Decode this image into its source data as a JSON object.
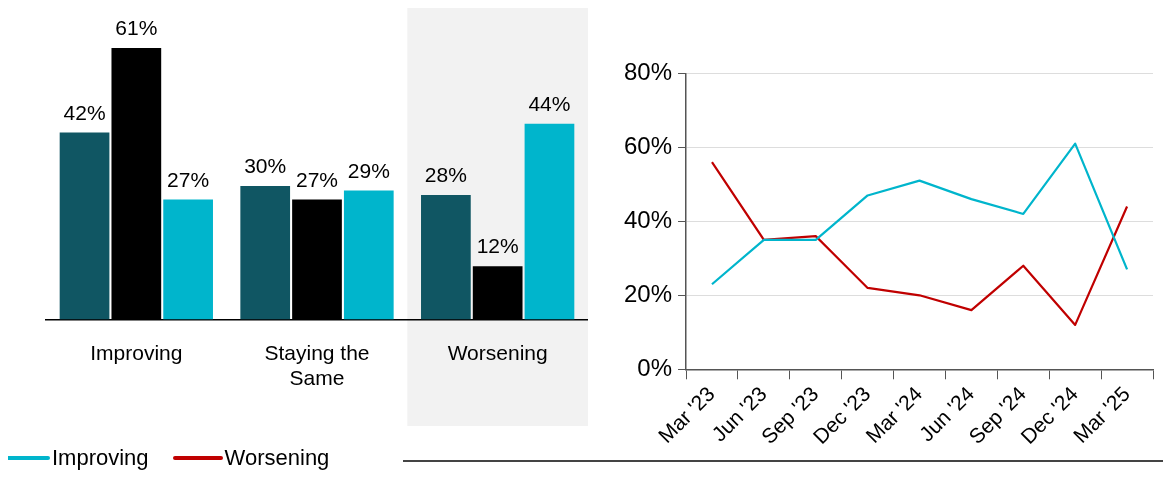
{
  "chart_data": [
    {
      "type": "bar",
      "categories": [
        "Improving",
        "Staying the Same",
        "Worsening"
      ],
      "series": [
        {
          "color": "#105663",
          "values": [
            42,
            30,
            28
          ],
          "value_labels": [
            "42%",
            "30%",
            "28%"
          ]
        },
        {
          "color": "#000000",
          "values": [
            61,
            27,
            12
          ],
          "value_labels": [
            "61%",
            "27%",
            "12%"
          ]
        },
        {
          "color": "#00b5cc",
          "values": [
            27,
            29,
            44
          ],
          "value_labels": [
            "27%",
            "29%",
            "44%"
          ]
        }
      ],
      "relative": false,
      "bands": [
        {
          "axis": "x",
          "from": "Worsening",
          "to": "Worsening",
          "color": "#f2f2f2"
        }
      ]
    },
    {
      "type": "line",
      "categories": [
        "Mar '23",
        "Jun '23",
        "Sep '23",
        "Dec '23",
        "Mar '24",
        "Jun '24",
        "Sep '24",
        "Dec '24",
        "Mar '25"
      ],
      "series": [
        {
          "name": "Improving",
          "color": "#00b5cc",
          "values": [
            23,
            35,
            35,
            47,
            51,
            46,
            42,
            61,
            27
          ]
        },
        {
          "name": "Worsening",
          "color": "#c00000",
          "values": [
            56,
            35,
            36,
            22,
            20,
            16,
            28,
            12,
            44
          ]
        }
      ],
      "ylim": [
        0,
        80
      ],
      "yticks": [
        {
          "value": 0,
          "label": "0%"
        },
        {
          "value": 20,
          "label": "20%"
        },
        {
          "value": 40,
          "label": "40%"
        },
        {
          "value": 60,
          "label": "60%"
        },
        {
          "value": 80,
          "label": "80%"
        }
      ],
      "grid": "y",
      "legend": "bottom left",
      "marker": "none",
      "line_style": "solid"
    }
  ]
}
